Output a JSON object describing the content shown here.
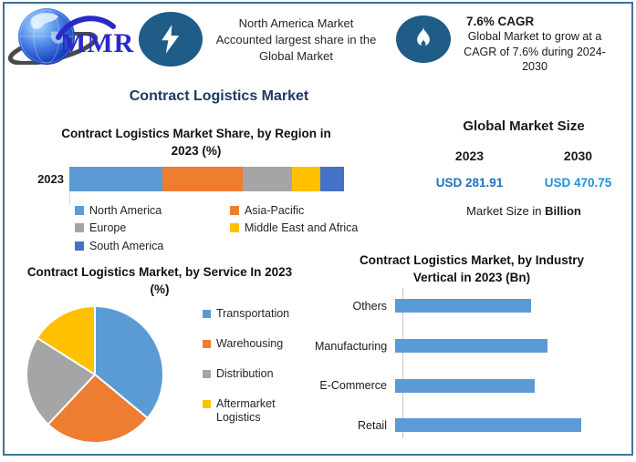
{
  "header": {
    "logo_text": "MMR",
    "na_highlight": {
      "lines": [
        "North America Market",
        "Accounted largest share in the",
        "Global Market"
      ]
    },
    "cagr_highlight": {
      "heading": "7.6% CAGR",
      "body": "Global Market to grow at a CAGR of 7.6% during 2024-2030"
    },
    "icon_bg_color": "#1f5c87"
  },
  "main_title": "Contract Logistics Market",
  "market_size": {
    "heading": "Global Market Size",
    "year_start": "2023",
    "year_end": "2030",
    "value_start": "USD 281.91",
    "value_end": "USD 470.75",
    "value_color_start": "#1c72bd",
    "value_color_end": "#1d93d9",
    "caption_prefix": "Market Size in ",
    "caption_bold": "Billion"
  },
  "chart_data": [
    {
      "type": "bar",
      "subtype": "stacked-horizontal",
      "title": "Contract Logistics Market Share, by Region in 2023 (%)",
      "categories": [
        "2023"
      ],
      "series": [
        {
          "name": "North America",
          "value": 34,
          "color": "#5B9BD5"
        },
        {
          "name": "Asia-Pacific",
          "value": 29,
          "color": "#ED7D31"
        },
        {
          "name": "Europe",
          "value": 18,
          "color": "#A5A5A5"
        },
        {
          "name": "Middle East and Africa",
          "value": 10.5,
          "color": "#FFC000"
        },
        {
          "name": "South America",
          "value": 8.5,
          "color": "#4472C4"
        }
      ],
      "xlim": [
        0,
        100
      ],
      "grid": false,
      "legend_position": "bottom-two-columns"
    },
    {
      "type": "pie",
      "title": "Contract Logistics Market, by Service In 2023 (%)",
      "slices": [
        {
          "label": "Transportation",
          "value": 36,
          "color": "#5B9BD5"
        },
        {
          "label": "Warehousing",
          "value": 26,
          "color": "#ED7D31"
        },
        {
          "label": "Distribution",
          "value": 22,
          "color": "#A5A5A5"
        },
        {
          "label": "Aftermarket Logistics",
          "value": 16,
          "color": "#FFC000"
        }
      ],
      "start_angle_deg": 0,
      "direction": "clockwise",
      "legend_position": "right"
    },
    {
      "type": "bar",
      "subtype": "horizontal",
      "title": "Contract Logistics Market, by Industry Vertical in 2023 (Bn)",
      "categories": [
        "Others",
        "Manufacturing",
        "E-Commerce",
        "Retail"
      ],
      "values_relative": [
        73,
        82,
        75,
        100
      ],
      "bar_color": "#5B9BD5",
      "grid": false,
      "note": "value axis not labeled; bar lengths are relative estimates"
    }
  ]
}
